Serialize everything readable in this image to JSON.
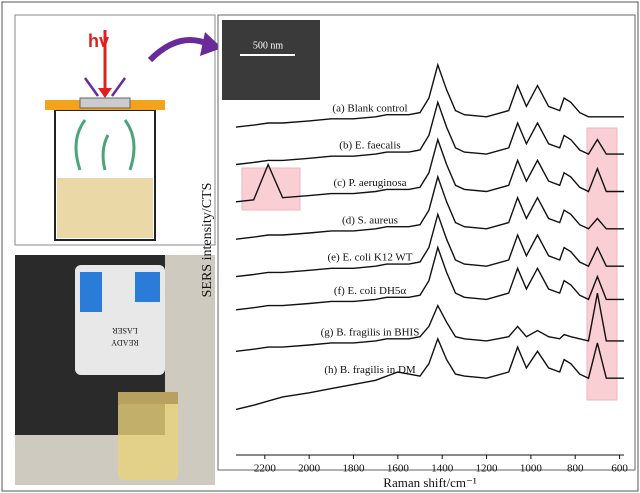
{
  "chart_data": {
    "type": "line",
    "schematic_label": "hv",
    "scale_bar": "500 nm",
    "screen_text": [
      "LASER",
      "READY"
    ],
    "xlabel": "Raman shift/cm⁻¹",
    "ylabel": "SERS intensity/CTS",
    "xlim": [
      2330,
      580
    ],
    "ylim": [
      0,
      100
    ],
    "xticks": [
      2200,
      2000,
      1800,
      1600,
      1400,
      1200,
      1000,
      800,
      600
    ],
    "color": "#111111",
    "x": [
      2330,
      2250,
      2185,
      2120,
      2000,
      1900,
      1800,
      1700,
      1650,
      1600,
      1550,
      1500,
      1460,
      1420,
      1380,
      1340,
      1300,
      1200,
      1100,
      1060,
      1020,
      970,
      920,
      870,
      850,
      820,
      780,
      740,
      700,
      660,
      600,
      580
    ],
    "series": [
      {
        "name": "(a)  Blank control",
        "values": [
          79,
          79.5,
          80,
          80,
          80.5,
          81,
          81,
          81.5,
          82,
          82,
          82,
          82.5,
          86,
          94,
          88,
          83,
          82,
          81.5,
          83,
          89,
          84,
          89,
          84,
          83,
          86,
          85,
          82.5,
          81.5,
          81.5,
          81.5,
          81.5,
          81.5
        ]
      },
      {
        "name": "(b)  E. faecalis",
        "values": [
          70,
          70.5,
          71,
          71,
          71.5,
          72,
          72,
          72.5,
          73,
          73,
          73,
          73.5,
          77,
          85,
          79,
          74,
          73,
          72.5,
          74,
          80,
          75,
          80,
          75,
          74,
          77,
          76,
          73.5,
          72.5,
          76,
          72.5,
          72.5,
          72.5
        ]
      },
      {
        "name": "(c)  P. aeruginosa",
        "values": [
          61,
          61.5,
          70,
          62,
          62.5,
          63,
          63,
          63.5,
          64,
          64,
          64,
          64.5,
          68,
          76,
          70,
          65,
          64,
          63.5,
          65,
          71,
          66,
          71,
          66,
          65,
          68,
          67,
          64.5,
          63.5,
          69,
          63.5,
          63.5,
          63.5
        ]
      },
      {
        "name": "(d)  S. aureus",
        "values": [
          52,
          52.5,
          53,
          53,
          53.5,
          54,
          54,
          54.5,
          55,
          55,
          55,
          55.5,
          59,
          67,
          61,
          56,
          55,
          54.5,
          56,
          62,
          57,
          62,
          57,
          56,
          59,
          58,
          55.5,
          54.5,
          57,
          54.5,
          54.5,
          54.5
        ]
      },
      {
        "name": "(e)  E. coli K12 WT",
        "values": [
          43,
          43.5,
          44,
          44,
          44.5,
          45,
          45,
          45.5,
          46,
          46,
          46,
          46.5,
          50,
          58,
          52,
          47,
          46,
          45.5,
          47,
          53,
          48,
          53,
          48,
          47,
          50,
          49,
          46.5,
          45.5,
          50,
          45.5,
          45.5,
          45.5
        ]
      },
      {
        "name": "(f)  E. coli DH5α",
        "values": [
          35,
          35.5,
          36,
          36,
          36.5,
          37,
          37,
          37.5,
          38,
          38,
          38,
          38.5,
          42,
          50,
          44,
          39,
          38,
          37.5,
          39,
          45,
          40,
          45,
          40,
          39,
          42,
          41,
          38.5,
          37.5,
          43,
          37.5,
          37.5,
          37.5
        ]
      },
      {
        "name": "(g)  B. fragilis in BHIS",
        "values": [
          25,
          25.5,
          26,
          26,
          26.5,
          27,
          27,
          27.5,
          28,
          28,
          28,
          28.5,
          31,
          36,
          32,
          28.5,
          28,
          27.5,
          28.5,
          31,
          28.5,
          30,
          28.5,
          28,
          29,
          28.5,
          28,
          27.5,
          39,
          27.5,
          27.5,
          27.5
        ]
      },
      {
        "name": "(h)  B. fragilis in DM",
        "values": [
          11,
          12,
          13,
          14,
          15,
          16,
          17,
          18,
          19,
          20,
          19.5,
          19,
          22,
          28,
          23,
          19.5,
          19,
          18.5,
          20,
          26,
          21,
          25,
          21,
          20,
          23,
          22,
          19.5,
          18.5,
          27,
          18.5,
          18.5,
          18.5
        ]
      }
    ]
  }
}
